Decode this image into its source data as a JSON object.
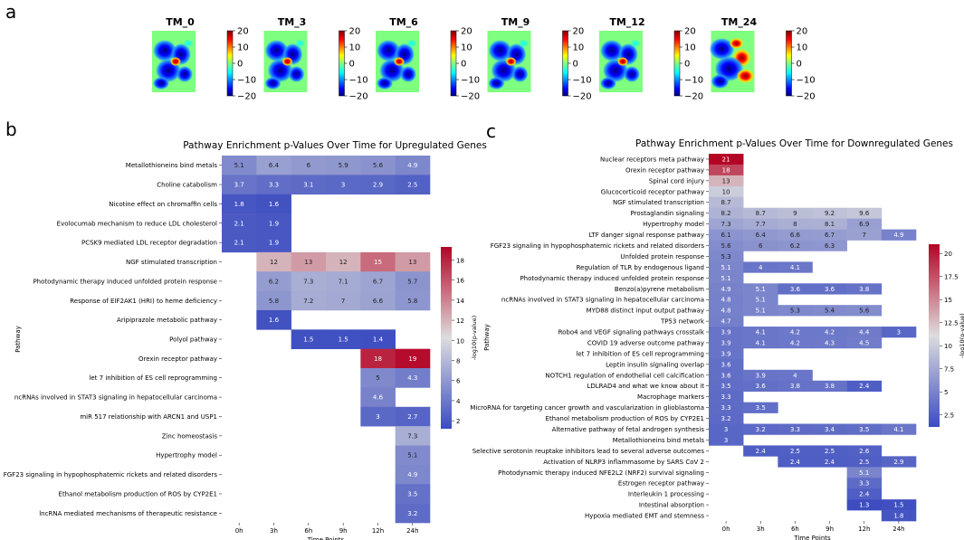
{
  "panel_labels": {
    "a": "a",
    "b": "b",
    "c": "c"
  },
  "colors": {
    "low": "#3b4cc0",
    "mid": "#dddddd",
    "high": "#b40426"
  },
  "chart_data": [
    {
      "type": "heatmap-maps",
      "panel": "a",
      "maps": [
        "TM_0",
        "TM_3",
        "TM_6",
        "TM_9",
        "TM_12",
        "TM_24"
      ],
      "colorbar": {
        "range": [
          -20,
          20
        ],
        "ticks": [
          "20",
          "10",
          "0",
          "−10",
          "−20"
        ]
      }
    },
    {
      "type": "heatmap",
      "panel": "b",
      "title": "Pathway Enrichment p-Values Over Time for Upregulated Genes",
      "xlabel": "Time Points",
      "ylabel": "Pathway",
      "colorbar_label": "-log10(p-value)",
      "vmin": 1.2,
      "vmax": 19.3,
      "colorbar_ticks": [
        2,
        4,
        6,
        8,
        10,
        12,
        14,
        16,
        18
      ],
      "columns": [
        "0h",
        "3h",
        "6h",
        "9h",
        "12h",
        "24h"
      ],
      "rows": [
        {
          "name": "Metallothioneins bind metals",
          "values": [
            5.1,
            6.4,
            6,
            5.9,
            5.6,
            4.9
          ]
        },
        {
          "name": "Choline catabolism",
          "values": [
            3.7,
            3.3,
            3.1,
            3,
            2.9,
            2.5
          ]
        },
        {
          "name": "Nicotine effect on chromaffin cells",
          "values": [
            1.8,
            1.6,
            null,
            null,
            null,
            null
          ]
        },
        {
          "name": "Evolocumab mechanism to reduce LDL cholesterol",
          "values": [
            2.1,
            1.9,
            null,
            null,
            null,
            null
          ]
        },
        {
          "name": "PCSK9 mediated LDL receptor degradation",
          "values": [
            2.1,
            1.9,
            null,
            null,
            null,
            null
          ]
        },
        {
          "name": "NGF stimulated transcription",
          "values": [
            null,
            12,
            13,
            12,
            15,
            13
          ]
        },
        {
          "name": "Photodynamic therapy induced unfolded protein response",
          "values": [
            null,
            6.2,
            7.3,
            7.1,
            6.7,
            5.7
          ]
        },
        {
          "name": "Response of EIF2AK1 (HRI) to heme deficiency",
          "values": [
            null,
            5.8,
            7.2,
            7,
            6.6,
            5.8
          ]
        },
        {
          "name": "Aripiprazole metabolic pathway",
          "values": [
            null,
            1.6,
            null,
            null,
            null,
            null
          ]
        },
        {
          "name": "Polyol pathway",
          "values": [
            null,
            null,
            1.5,
            1.5,
            1.4,
            null
          ]
        },
        {
          "name": "Orexin receptor pathway",
          "values": [
            null,
            null,
            null,
            null,
            18,
            19
          ]
        },
        {
          "name": "let 7 inhibition of ES cell reprogramming",
          "values": [
            null,
            null,
            null,
            null,
            5,
            4.3
          ]
        },
        {
          "name": "ncRNAs involved in STAT3 signaling in hepatocellular carcinoma",
          "values": [
            null,
            null,
            null,
            null,
            4.6,
            null
          ]
        },
        {
          "name": "miR 517 relationship with ARCN1 and USP1",
          "values": [
            null,
            null,
            null,
            null,
            3,
            2.7
          ]
        },
        {
          "name": "Zinc homeostasis",
          "values": [
            null,
            null,
            null,
            null,
            null,
            7.3
          ]
        },
        {
          "name": "Hypertrophy model",
          "values": [
            null,
            null,
            null,
            null,
            null,
            5.1
          ]
        },
        {
          "name": "FGF23 signaling in hypophosphatemic rickets and related disorders",
          "values": [
            null,
            null,
            null,
            null,
            null,
            4.9
          ]
        },
        {
          "name": "Ethanol metabolism production of ROS by CYP2E1",
          "values": [
            null,
            null,
            null,
            null,
            null,
            3.5
          ]
        },
        {
          "name": "lncRNA mediated mechanisms of therapeutic resistance",
          "values": [
            null,
            null,
            null,
            null,
            null,
            3.2
          ]
        }
      ]
    },
    {
      "type": "heatmap",
      "panel": "c",
      "title": "Pathway Enrichment p-Values Over Time for Downregulated Genes",
      "xlabel": "Time Points",
      "ylabel": "Pathway",
      "colorbar_label": "-log10(p-value)",
      "vmin": 1.2,
      "vmax": 21,
      "colorbar_ticks": [
        2.5,
        5.0,
        7.5,
        10.0,
        12.5,
        15.0,
        17.5,
        20.0
      ],
      "columns": [
        "0h",
        "3h",
        "6h",
        "9h",
        "12h",
        "24h"
      ],
      "rows": [
        {
          "name": "Nuclear receptors meta pathway",
          "values": [
            21,
            null,
            null,
            null,
            null,
            null
          ]
        },
        {
          "name": "Orexin receptor pathway",
          "values": [
            18,
            null,
            null,
            null,
            null,
            null
          ]
        },
        {
          "name": "Spinal cord injury",
          "values": [
            13,
            null,
            null,
            null,
            null,
            null
          ]
        },
        {
          "name": "Glucocorticoid receptor pathway",
          "values": [
            10,
            null,
            null,
            null,
            null,
            null
          ]
        },
        {
          "name": "NGF stimulated transcription",
          "values": [
            8.7,
            null,
            null,
            null,
            null,
            null
          ]
        },
        {
          "name": "Prostaglandin signaling",
          "values": [
            8.2,
            8.7,
            9,
            9.2,
            9.6,
            null
          ]
        },
        {
          "name": "Hypertrophy model",
          "values": [
            7.3,
            7.7,
            8,
            8.1,
            6.9,
            null
          ]
        },
        {
          "name": "LTF danger signal response pathway",
          "values": [
            6.1,
            6.4,
            6.6,
            6.7,
            7,
            4.9
          ]
        },
        {
          "name": "FGF23 signaling in hypophosphatemic rickets and related disorders",
          "values": [
            5.6,
            6,
            6.2,
            6.3,
            null,
            null
          ]
        },
        {
          "name": "Unfolded protein response",
          "values": [
            5.3,
            null,
            null,
            null,
            null,
            null
          ]
        },
        {
          "name": "Regulation of TLR by endogenous ligand",
          "values": [
            5.1,
            4,
            4.1,
            null,
            null,
            null
          ]
        },
        {
          "name": "Photodynamic therapy induced unfolded protein response",
          "values": [
            5.1,
            null,
            null,
            null,
            null,
            null
          ]
        },
        {
          "name": "Benzo(a)pyrene metabolism",
          "values": [
            4.9,
            5.1,
            3.6,
            3.6,
            3.8,
            null
          ]
        },
        {
          "name": "ncRNAs involved in STAT3 signaling in hepatocellular carcinoma",
          "values": [
            4.8,
            5.1,
            null,
            null,
            null,
            null
          ]
        },
        {
          "name": "MYD88 distinct input output pathway",
          "values": [
            4.8,
            5.1,
            5.3,
            5.4,
            5.6,
            null
          ]
        },
        {
          "name": "TP53 network",
          "values": [
            4.7,
            null,
            null,
            null,
            null,
            null
          ]
        },
        {
          "name": "Robo4 and VEGF signaling pathways crosstalk",
          "values": [
            3.9,
            4.1,
            4.2,
            4.2,
            4.4,
            3
          ]
        },
        {
          "name": "COVID 19 adverse outcome pathway",
          "values": [
            3.9,
            4.1,
            4.2,
            4.3,
            4.5,
            null
          ]
        },
        {
          "name": "let 7 inhibition of ES cell reprogramming",
          "values": [
            3.9,
            null,
            null,
            null,
            null,
            null
          ]
        },
        {
          "name": "Leptin insulin signaling overlap",
          "values": [
            3.6,
            null,
            null,
            null,
            null,
            null
          ]
        },
        {
          "name": "NOTCH1 regulation of endothelial cell calcification",
          "values": [
            3.6,
            3.9,
            4,
            null,
            null,
            null
          ]
        },
        {
          "name": "LDLRAD4 and what we know about it",
          "values": [
            3.5,
            3.6,
            3.8,
            3.8,
            2.4,
            null
          ]
        },
        {
          "name": "Macrophage markers",
          "values": [
            3.3,
            null,
            null,
            null,
            null,
            null
          ]
        },
        {
          "name": "MicroRNA for targeting cancer growth and vascularization in glioblastoma",
          "values": [
            3.3,
            3.5,
            null,
            null,
            null,
            null
          ]
        },
        {
          "name": "Ethanol metabolism production of ROS by CYP2E1",
          "values": [
            3.2,
            null,
            null,
            null,
            null,
            null
          ]
        },
        {
          "name": "Alternative pathway of fetal androgen synthesis",
          "values": [
            3,
            3.2,
            3.3,
            3.4,
            3.5,
            4.1
          ]
        },
        {
          "name": "Metallothioneins bind metals",
          "values": [
            3,
            null,
            null,
            null,
            null,
            null
          ]
        },
        {
          "name": "Selective serotonin reuptake inhibitors lead to several adverse outcomes",
          "values": [
            null,
            2.4,
            2.5,
            2.5,
            2.6,
            null
          ]
        },
        {
          "name": "Activation of NLRP3 inflammasome by SARS CoV 2",
          "values": [
            null,
            null,
            2.4,
            2.4,
            2.5,
            2.9
          ]
        },
        {
          "name": "Photodynamic therapy induced NFE2L2 (NRF2) survival signaling",
          "values": [
            null,
            null,
            null,
            null,
            5.1,
            null
          ]
        },
        {
          "name": "Estrogen receptor pathway",
          "values": [
            null,
            null,
            null,
            null,
            3.3,
            null
          ]
        },
        {
          "name": "Interleukin 1 processing",
          "values": [
            null,
            null,
            null,
            null,
            2.4,
            null
          ]
        },
        {
          "name": "Intestinal absorption",
          "values": [
            null,
            null,
            null,
            null,
            1.3,
            1.5
          ]
        },
        {
          "name": "Hypoxia mediated EMT and stemness",
          "values": [
            null,
            null,
            null,
            null,
            null,
            1.8
          ]
        }
      ]
    }
  ]
}
